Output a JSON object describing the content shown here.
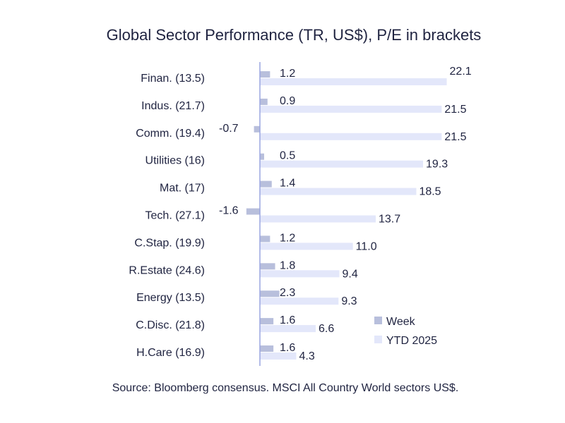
{
  "chart_data": {
    "type": "bar",
    "orientation": "horizontal",
    "title": "Global Sector Performance (TR, US$), P/E in brackets",
    "source": "Source: Bloomberg consensus. MSCI All Country World sectors US$.",
    "categories": [
      "Finan. (13.5)",
      "Indus. (21.7)",
      "Comm. (19.4)",
      "Utilities (16)",
      "Mat. (17)",
      "Tech. (27.1)",
      "C.Stap. (19.9)",
      "R.Estate (24.6)",
      "Energy (13.5)",
      "C.Disc. (21.8)",
      "H.Care (16.9)"
    ],
    "series": [
      {
        "name": "Week",
        "color": "#b8bfdc",
        "values": [
          1.2,
          0.9,
          -0.7,
          0.5,
          1.4,
          -1.6,
          1.2,
          1.8,
          2.3,
          1.6,
          1.6
        ],
        "labels": [
          "1.2",
          "0.9",
          "-0.7",
          "0.5",
          "1.4",
          "-1.6",
          "1.2",
          "1.8",
          "2.3",
          "1.6",
          "1.6"
        ]
      },
      {
        "name": "YTD 2025",
        "color": "#e3e7fa",
        "values": [
          22.1,
          21.5,
          21.5,
          19.3,
          18.5,
          13.7,
          11.0,
          9.4,
          9.3,
          6.6,
          4.3
        ],
        "labels": [
          "22.1",
          "21.5",
          "21.5",
          "19.3",
          "18.5",
          "13.7",
          "11.0",
          "9.4",
          "9.3",
          "6.6",
          "4.3"
        ]
      }
    ],
    "legend": {
      "position": "bottom-right",
      "entries": [
        "Week",
        "YTD 2025"
      ]
    },
    "axis_color": "#9aa6e0"
  }
}
